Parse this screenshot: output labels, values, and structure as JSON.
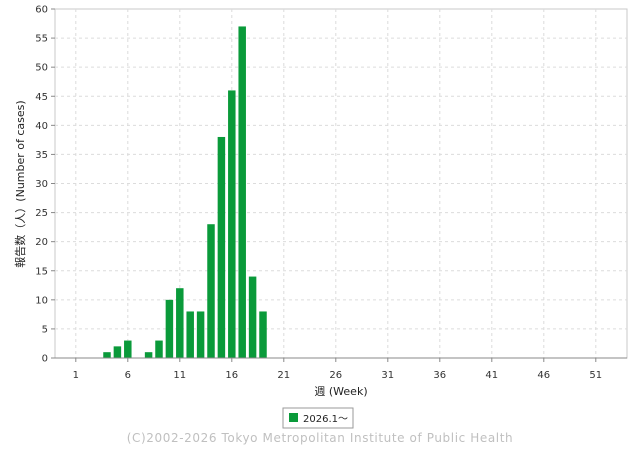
{
  "chart_data": {
    "type": "bar",
    "xlabel": "週 (Week)",
    "ylabel": "報告数（人）(Number of cases)",
    "ylim": [
      0,
      60
    ],
    "yticks": [
      0,
      5,
      10,
      15,
      20,
      25,
      30,
      35,
      40,
      45,
      50,
      55,
      60
    ],
    "xlim": [
      -1,
      54
    ],
    "xticks": [
      1,
      6,
      11,
      16,
      21,
      26,
      31,
      36,
      41,
      46,
      51
    ],
    "grid": true,
    "legend_position": "bottom-center",
    "series": [
      {
        "name": "2026.1〜",
        "color": "#0a9a3a",
        "x": [
          1,
          2,
          3,
          4,
          5,
          6,
          7,
          8,
          9,
          10,
          11,
          12,
          13,
          14,
          15,
          16,
          17,
          18,
          19
        ],
        "values": [
          0,
          0,
          0,
          1,
          2,
          3,
          0,
          1,
          3,
          10,
          12,
          8,
          8,
          23,
          38,
          46,
          57,
          14,
          8
        ]
      }
    ]
  },
  "footer": {
    "copyright": "(C)2002-2026 Tokyo Metropolitan Institute of Public Health"
  }
}
